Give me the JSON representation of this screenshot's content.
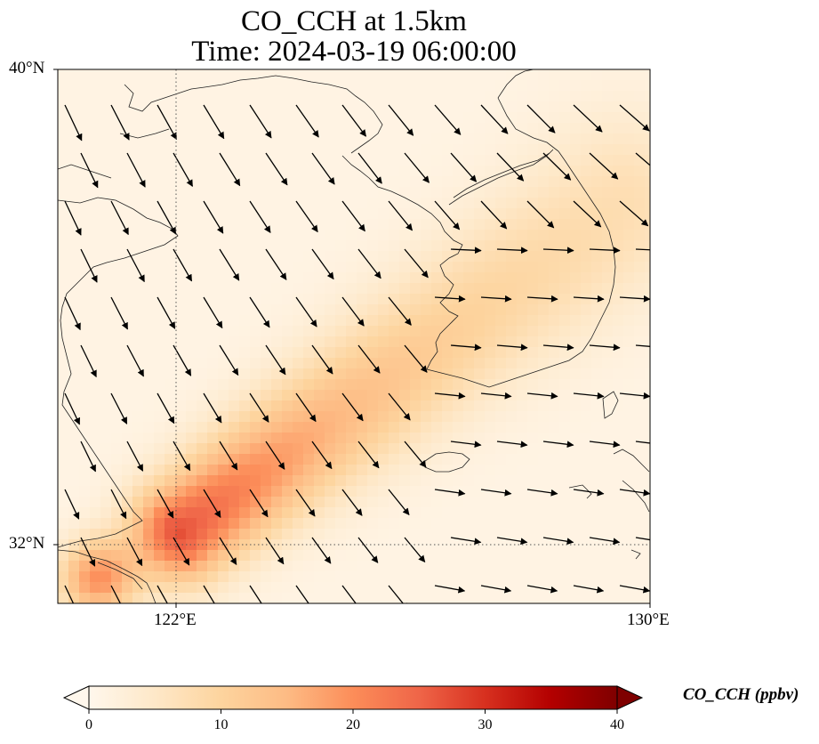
{
  "title": {
    "line1": "CO_CCH at 1.5km",
    "line2": "Time: 2024-03-19 06:00:00"
  },
  "map": {
    "type": "geographic-map",
    "projection": "PlateCarree",
    "lon_range": [
      119.5,
      130.0
    ],
    "lat_range": [
      31.0,
      40.0
    ],
    "lat_ticks": [
      {
        "value": 40,
        "label": "40°N"
      },
      {
        "value": 32,
        "label": "32°N"
      }
    ],
    "lon_ticks": [
      {
        "value": 122,
        "label": "122°E"
      },
      {
        "value": 130,
        "label": "130°E"
      }
    ],
    "gridlines": "dotted at 122°E and 32°N",
    "field_variable": "CO_CCH",
    "plume_description": "elevated CO_CCH plume extending from the Yangtze estuary northeast toward Jeju and the southern/eastern Korean peninsula",
    "overlays": [
      "coastlines",
      "wind vectors"
    ],
    "colors": {
      "cmap": [
        "#fff7ec",
        "#fee8c8",
        "#fdd49e",
        "#fdbb84",
        "#fc8d59",
        "#ef6548",
        "#d7301f",
        "#b30000",
        "#7f0000"
      ],
      "coastline": "#222222",
      "arrow": "#000000"
    }
  },
  "colorbar": {
    "min": 0,
    "max": 40,
    "ticks": [
      {
        "value": 0,
        "label": "0"
      },
      {
        "value": 10,
        "label": "10"
      },
      {
        "value": 20,
        "label": "20"
      },
      {
        "value": 30,
        "label": "30"
      },
      {
        "value": 40,
        "label": "40"
      }
    ],
    "extend": "both",
    "label": "CO_CCH (ppbv)"
  }
}
